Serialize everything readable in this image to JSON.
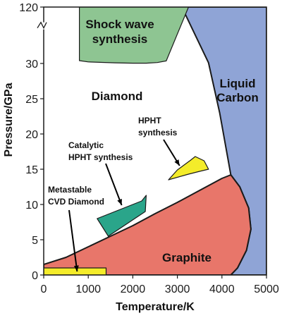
{
  "chart_data": {
    "type": "area",
    "title": "",
    "xlabel": "Temperature/K",
    "ylabel": "Pressure/GPa",
    "xlim": [
      0,
      5000
    ],
    "ylim": [
      0,
      120
    ],
    "y_axis_break": "between 30 and 120",
    "x_ticks": [
      "0",
      "1000",
      "2000",
      "3000",
      "4000",
      "5000"
    ],
    "y_ticks": [
      "0",
      "5",
      "10",
      "15",
      "20",
      "25",
      "30",
      "120"
    ],
    "grid": false,
    "regions": [
      {
        "name": "Graphite",
        "label": "Graphite",
        "color": "#e8766a",
        "points": [
          [
            0,
            1.5
          ],
          [
            500,
            2.5
          ],
          [
            1000,
            4
          ],
          [
            1500,
            5.5
          ],
          [
            2000,
            7
          ],
          [
            2500,
            8.7
          ],
          [
            3000,
            10.3
          ],
          [
            3500,
            12
          ],
          [
            4000,
            13.7
          ],
          [
            4200,
            14.2
          ],
          [
            4400,
            12.5
          ],
          [
            4600,
            9.5
          ],
          [
            4650,
            6.5
          ],
          [
            4550,
            3.5
          ],
          [
            4350,
            1
          ],
          [
            4200,
            0
          ],
          [
            0,
            0
          ]
        ]
      },
      {
        "name": "Liquid Carbon",
        "label": [
          "Liquid",
          "Carbon"
        ],
        "color": "#8fa4d6",
        "points": [
          [
            3100,
            120
          ],
          [
            3300,
            120
          ],
          [
            5000,
            120
          ],
          [
            5000,
            0
          ],
          [
            4200,
            0
          ],
          [
            4350,
            1
          ],
          [
            4550,
            3.5
          ],
          [
            4650,
            6.5
          ],
          [
            4600,
            9.5
          ],
          [
            4400,
            12.5
          ],
          [
            4200,
            14.2
          ],
          [
            3950,
            23
          ],
          [
            3700,
            31
          ],
          [
            3100,
            120
          ]
        ]
      },
      {
        "name": "Diamond",
        "label": "Diamond",
        "color": "#ffffff"
      },
      {
        "name": "Shock wave synthesis",
        "label": [
          "Shock wave",
          "synthesis"
        ],
        "color": "#8ec592",
        "points": [
          [
            800,
            120
          ],
          [
            3250,
            120
          ],
          [
            2750,
            34
          ],
          [
            2550,
            31.5
          ],
          [
            2300,
            30.5
          ],
          [
            2000,
            30.5
          ],
          [
            1600,
            31
          ],
          [
            1000,
            32.5
          ],
          [
            800,
            34.5
          ],
          [
            800,
            120
          ]
        ]
      },
      {
        "name": "HPHT synthesis",
        "label": [
          "HPHT",
          "synthesis"
        ],
        "color": "#f4ec2a",
        "points": [
          [
            2800,
            13.5
          ],
          [
            3250,
            14.3
          ],
          [
            3500,
            14.7
          ],
          [
            3700,
            15
          ],
          [
            3600,
            16.2
          ],
          [
            3400,
            16.8
          ],
          [
            3300,
            16.3
          ],
          [
            3000,
            14.9
          ],
          [
            2800,
            13.5
          ]
        ]
      },
      {
        "name": "Catalytic HPHT synthesis",
        "label": [
          "Catalytic",
          "HPHT synthesis"
        ],
        "color": "#2aa58a",
        "points": [
          [
            1200,
            8
          ],
          [
            2200,
            10.5
          ],
          [
            2300,
            11.3
          ],
          [
            2280,
            9
          ],
          [
            1450,
            5.5
          ],
          [
            1200,
            8
          ]
        ]
      },
      {
        "name": "Metastable CVD Diamond",
        "label": [
          "Metastable",
          "CVD Diamond"
        ],
        "color": "#f4ec2a",
        "points": [
          [
            0,
            0
          ],
          [
            1400,
            0
          ],
          [
            1400,
            1
          ],
          [
            0,
            1
          ],
          [
            0,
            0
          ]
        ]
      }
    ],
    "annotations": [
      {
        "text": [
          "HPHT",
          "synthesis"
        ],
        "arrow_to": [
          3050,
          15.5
        ]
      },
      {
        "text": [
          "Catalytic",
          "HPHT synthesis"
        ],
        "arrow_to": [
          1750,
          9.9
        ]
      },
      {
        "text": [
          "Metastable",
          "CVD Diamond"
        ],
        "arrow_to": [
          750,
          0.5
        ]
      }
    ]
  }
}
